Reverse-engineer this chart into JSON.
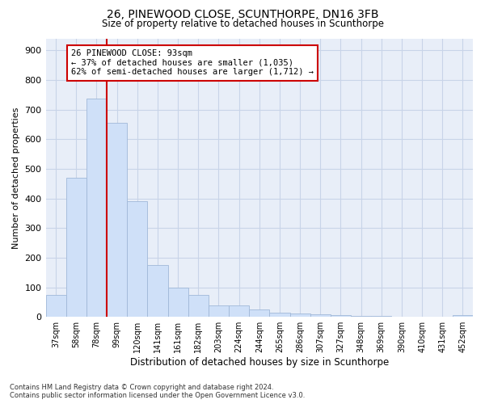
{
  "title1": "26, PINEWOOD CLOSE, SCUNTHORPE, DN16 3FB",
  "title2": "Size of property relative to detached houses in Scunthorpe",
  "xlabel": "Distribution of detached houses by size in Scunthorpe",
  "ylabel": "Number of detached properties",
  "categories": [
    "37sqm",
    "58sqm",
    "78sqm",
    "99sqm",
    "120sqm",
    "141sqm",
    "161sqm",
    "182sqm",
    "203sqm",
    "224sqm",
    "244sqm",
    "265sqm",
    "286sqm",
    "307sqm",
    "327sqm",
    "348sqm",
    "369sqm",
    "390sqm",
    "410sqm",
    "431sqm",
    "452sqm"
  ],
  "values": [
    73,
    470,
    738,
    655,
    390,
    175,
    100,
    75,
    40,
    40,
    26,
    14,
    11,
    8,
    5,
    4,
    2,
    0,
    0,
    0,
    5
  ],
  "bar_color": "#cfe0f8",
  "bar_edge_color": "#a0b8d8",
  "vline_x_index": 3,
  "vline_color": "#cc0000",
  "annotation_line1": "26 PINEWOOD CLOSE: 93sqm",
  "annotation_line2": "← 37% of detached houses are smaller (1,035)",
  "annotation_line3": "62% of semi-detached houses are larger (1,712) →",
  "annotation_box_color": "#ffffff",
  "annotation_box_edge": "#cc0000",
  "ylim": [
    0,
    940
  ],
  "yticks": [
    0,
    100,
    200,
    300,
    400,
    500,
    600,
    700,
    800,
    900
  ],
  "grid_color": "#c8d4e8",
  "footnote": "Contains HM Land Registry data © Crown copyright and database right 2024.\nContains public sector information licensed under the Open Government Licence v3.0.",
  "bg_color": "#e8eef8"
}
